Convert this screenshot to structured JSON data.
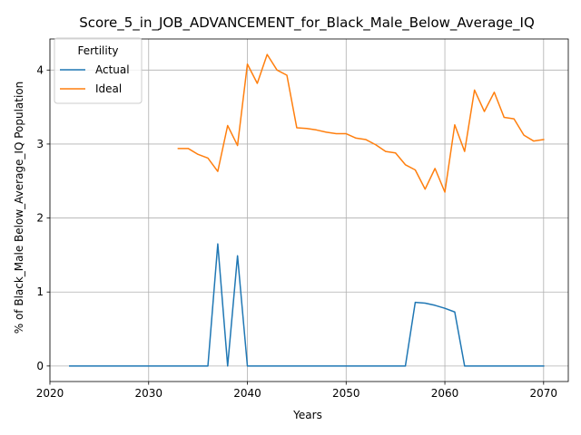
{
  "chart_data": {
    "type": "line",
    "title": "Score_5_in_JOB_ADVANCEMENT_for_Black_Male_Below_Average_IQ",
    "xlabel": "Years",
    "ylabel": "% of Black_Male Below_Average_IQ Population",
    "xlim": [
      2020,
      2072.5
    ],
    "ylim": [
      -0.21,
      4.42
    ],
    "xticks": [
      2020,
      2030,
      2040,
      2050,
      2060,
      2070
    ],
    "yticks": [
      0,
      1,
      2,
      3,
      4
    ],
    "grid": true,
    "legend": {
      "title": "Fertility",
      "placement": "top-left"
    },
    "series": [
      {
        "name": "Actual",
        "color": "#1f77b4",
        "x": [
          2022,
          2023,
          2024,
          2025,
          2026,
          2027,
          2028,
          2029,
          2030,
          2031,
          2032,
          2033,
          2034,
          2035,
          2036,
          2037,
          2038,
          2039,
          2040,
          2041,
          2042,
          2043,
          2044,
          2045,
          2046,
          2047,
          2048,
          2049,
          2050,
          2051,
          2052,
          2053,
          2054,
          2055,
          2056,
          2057,
          2058,
          2059,
          2060,
          2061,
          2062,
          2063,
          2064,
          2065,
          2066,
          2067,
          2068,
          2069,
          2070
        ],
        "values": [
          0,
          0,
          0,
          0,
          0,
          0,
          0,
          0,
          0,
          0,
          0,
          0,
          0,
          0,
          0,
          1.65,
          0,
          1.49,
          0,
          0,
          0,
          0,
          0,
          0,
          0,
          0,
          0,
          0,
          0,
          0,
          0,
          0,
          0,
          0,
          0,
          0.86,
          0.85,
          0.82,
          0.78,
          0.73,
          0,
          0,
          0,
          0,
          0,
          0,
          0,
          0,
          0
        ]
      },
      {
        "name": "Ideal",
        "color": "#ff7f0e",
        "x": [
          2033,
          2034,
          2035,
          2036,
          2037,
          2038,
          2039,
          2040,
          2041,
          2042,
          2043,
          2044,
          2045,
          2046,
          2047,
          2048,
          2049,
          2050,
          2051,
          2052,
          2053,
          2054,
          2055,
          2056,
          2057,
          2058,
          2059,
          2060,
          2061,
          2062,
          2063,
          2064,
          2065,
          2066,
          2067,
          2068,
          2069,
          2070
        ],
        "values": [
          2.94,
          2.94,
          2.86,
          2.81,
          2.63,
          3.25,
          2.98,
          4.08,
          3.82,
          4.21,
          4.0,
          3.93,
          3.22,
          3.21,
          3.19,
          3.16,
          3.14,
          3.14,
          3.08,
          3.06,
          2.99,
          2.9,
          2.88,
          2.72,
          2.65,
          2.39,
          2.67,
          2.35,
          3.26,
          2.9,
          3.73,
          3.44,
          3.7,
          3.36,
          3.34,
          3.12,
          3.04,
          3.06
        ]
      }
    ]
  }
}
